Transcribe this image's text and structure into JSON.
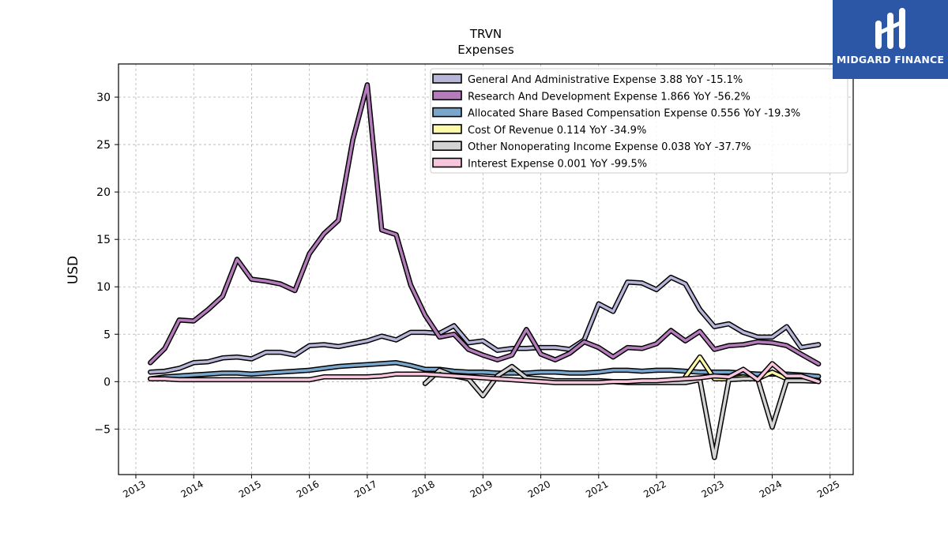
{
  "branding": {
    "logo_text": "MIDGARD FINANCE"
  },
  "chart_data": {
    "type": "line",
    "title": "TRVN",
    "subtitle": "Expenses",
    "xlabel": "",
    "ylabel": "USD",
    "xlim": [
      2012.7,
      2025.4
    ],
    "ylim": [
      -9.8,
      33.5
    ],
    "x_ticks": [
      2013,
      2014,
      2015,
      2016,
      2017,
      2018,
      2019,
      2020,
      2021,
      2022,
      2023,
      2024,
      2025
    ],
    "x_tick_labels": [
      "2013",
      "2014",
      "2015",
      "2016",
      "2017",
      "2018",
      "2019",
      "2020",
      "2021",
      "2022",
      "2023",
      "2024",
      "2025"
    ],
    "y_ticks": [
      -5,
      0,
      5,
      10,
      15,
      20,
      25,
      30
    ],
    "y_tick_labels": [
      "−5",
      "0",
      "5",
      "10",
      "15",
      "20",
      "25",
      "30"
    ],
    "grid": true,
    "legend_position": "top-right",
    "series": [
      {
        "name": "General And Administrative Expense",
        "legend_label": "General And Administrative Expense  3.88 YoY -15.1%",
        "color": "#b7b5d8",
        "points": [
          [
            2013.25,
            1.0
          ],
          [
            2013.5,
            1.1
          ],
          [
            2013.75,
            1.4
          ],
          [
            2014.0,
            2.0
          ],
          [
            2014.25,
            2.1
          ],
          [
            2014.5,
            2.5
          ],
          [
            2014.75,
            2.6
          ],
          [
            2015.0,
            2.4
          ],
          [
            2015.25,
            3.1
          ],
          [
            2015.5,
            3.1
          ],
          [
            2015.75,
            2.8
          ],
          [
            2016.0,
            3.8
          ],
          [
            2016.25,
            3.9
          ],
          [
            2016.5,
            3.7
          ],
          [
            2016.75,
            4.0
          ],
          [
            2017.0,
            4.3
          ],
          [
            2017.25,
            4.8
          ],
          [
            2017.5,
            4.4
          ],
          [
            2017.75,
            5.2
          ],
          [
            2018.0,
            5.2
          ],
          [
            2018.25,
            5.1
          ],
          [
            2018.5,
            5.9
          ],
          [
            2018.75,
            4.1
          ],
          [
            2019.0,
            4.3
          ],
          [
            2019.25,
            3.3
          ],
          [
            2019.5,
            3.5
          ],
          [
            2019.75,
            3.5
          ],
          [
            2020.0,
            3.6
          ],
          [
            2020.25,
            3.6
          ],
          [
            2020.5,
            3.4
          ],
          [
            2020.75,
            4.4
          ],
          [
            2021.0,
            8.2
          ],
          [
            2021.25,
            7.4
          ],
          [
            2021.5,
            10.5
          ],
          [
            2021.75,
            10.4
          ],
          [
            2022.0,
            9.7
          ],
          [
            2022.25,
            11.0
          ],
          [
            2022.5,
            10.3
          ],
          [
            2022.75,
            7.6
          ],
          [
            2023.0,
            5.8
          ],
          [
            2023.25,
            6.1
          ],
          [
            2023.5,
            5.2
          ],
          [
            2023.75,
            4.7
          ],
          [
            2024.0,
            4.7
          ],
          [
            2024.25,
            5.8
          ],
          [
            2024.5,
            3.6
          ],
          [
            2024.8,
            3.9
          ]
        ]
      },
      {
        "name": "Research And Development Expense",
        "legend_label": "Research And Development Expense  1.866 YoY -56.2%",
        "color": "#b57cbc",
        "points": [
          [
            2013.25,
            2.0
          ],
          [
            2013.5,
            3.5
          ],
          [
            2013.75,
            6.5
          ],
          [
            2014.0,
            6.4
          ],
          [
            2014.25,
            7.6
          ],
          [
            2014.5,
            9.0
          ],
          [
            2014.75,
            12.9
          ],
          [
            2015.0,
            10.8
          ],
          [
            2015.25,
            10.6
          ],
          [
            2015.5,
            10.3
          ],
          [
            2015.75,
            9.6
          ],
          [
            2016.0,
            13.5
          ],
          [
            2016.25,
            15.6
          ],
          [
            2016.5,
            17.0
          ],
          [
            2016.75,
            25.5
          ],
          [
            2017.0,
            31.3
          ],
          [
            2017.25,
            16.0
          ],
          [
            2017.5,
            15.5
          ],
          [
            2017.75,
            10.2
          ],
          [
            2018.0,
            7.0
          ],
          [
            2018.25,
            4.7
          ],
          [
            2018.5,
            5.0
          ],
          [
            2018.75,
            3.4
          ],
          [
            2019.0,
            2.8
          ],
          [
            2019.25,
            2.3
          ],
          [
            2019.5,
            2.8
          ],
          [
            2019.75,
            5.5
          ],
          [
            2020.0,
            2.9
          ],
          [
            2020.25,
            2.3
          ],
          [
            2020.5,
            3.0
          ],
          [
            2020.75,
            4.2
          ],
          [
            2021.0,
            3.6
          ],
          [
            2021.25,
            2.6
          ],
          [
            2021.5,
            3.6
          ],
          [
            2021.75,
            3.5
          ],
          [
            2022.0,
            4.0
          ],
          [
            2022.25,
            5.4
          ],
          [
            2022.5,
            4.3
          ],
          [
            2022.75,
            5.3
          ],
          [
            2023.0,
            3.4
          ],
          [
            2023.25,
            3.8
          ],
          [
            2023.5,
            3.9
          ],
          [
            2023.75,
            4.2
          ],
          [
            2024.0,
            4.1
          ],
          [
            2024.25,
            3.8
          ],
          [
            2024.5,
            2.9
          ],
          [
            2024.8,
            1.866
          ]
        ]
      },
      {
        "name": "Allocated Share Based Compensation Expense",
        "legend_label": "Allocated Share Based Compensation Expense  0.556 YoY -19.3%",
        "color": "#7aa6cc",
        "points": [
          [
            2013.25,
            0.3
          ],
          [
            2013.5,
            0.5
          ],
          [
            2013.75,
            0.6
          ],
          [
            2014.0,
            0.7
          ],
          [
            2014.25,
            0.8
          ],
          [
            2014.5,
            0.9
          ],
          [
            2014.75,
            0.9
          ],
          [
            2015.0,
            0.8
          ],
          [
            2015.25,
            0.9
          ],
          [
            2015.5,
            1.0
          ],
          [
            2015.75,
            1.1
          ],
          [
            2016.0,
            1.2
          ],
          [
            2016.25,
            1.4
          ],
          [
            2016.5,
            1.6
          ],
          [
            2016.75,
            1.7
          ],
          [
            2017.0,
            1.8
          ],
          [
            2017.25,
            1.9
          ],
          [
            2017.5,
            2.0
          ],
          [
            2017.75,
            1.7
          ],
          [
            2018.0,
            1.3
          ],
          [
            2018.25,
            1.3
          ],
          [
            2018.5,
            1.1
          ],
          [
            2018.75,
            1.0
          ],
          [
            2019.0,
            1.0
          ],
          [
            2019.25,
            0.9
          ],
          [
            2019.5,
            0.9
          ],
          [
            2019.75,
            0.9
          ],
          [
            2020.0,
            1.0
          ],
          [
            2020.25,
            1.0
          ],
          [
            2020.5,
            0.9
          ],
          [
            2020.75,
            0.9
          ],
          [
            2021.0,
            1.0
          ],
          [
            2021.25,
            1.2
          ],
          [
            2021.5,
            1.2
          ],
          [
            2021.75,
            1.1
          ],
          [
            2022.0,
            1.2
          ],
          [
            2022.25,
            1.2
          ],
          [
            2022.5,
            1.1
          ],
          [
            2022.75,
            1.0
          ],
          [
            2023.0,
            1.0
          ],
          [
            2023.25,
            1.0
          ],
          [
            2023.5,
            0.9
          ],
          [
            2023.75,
            0.8
          ],
          [
            2024.0,
            0.8
          ],
          [
            2024.25,
            0.8
          ],
          [
            2024.5,
            0.7
          ],
          [
            2024.8,
            0.556
          ]
        ]
      },
      {
        "name": "Cost Of Revenue",
        "legend_label": "Cost Of Revenue  0.114 YoY -34.9%",
        "color": "#fdfbaa",
        "points": [
          [
            2022.5,
            0.5
          ],
          [
            2022.75,
            2.6
          ],
          [
            2023.0,
            0.3
          ],
          [
            2023.25,
            0.3
          ],
          [
            2023.5,
            0.5
          ],
          [
            2023.75,
            0.3
          ],
          [
            2024.0,
            1.0
          ],
          [
            2024.25,
            0.3
          ],
          [
            2024.5,
            0.2
          ],
          [
            2024.8,
            0.114
          ]
        ]
      },
      {
        "name": "Other Nonoperating Income Expense",
        "legend_label": "Other Nonoperating Income Expense  0.038 YoY -37.7%",
        "color": "#d3d3d3",
        "points": [
          [
            2018.0,
            -0.2
          ],
          [
            2018.25,
            1.2
          ],
          [
            2018.5,
            0.6
          ],
          [
            2018.75,
            0.3
          ],
          [
            2019.0,
            -1.5
          ],
          [
            2019.25,
            0.6
          ],
          [
            2019.5,
            1.6
          ],
          [
            2019.75,
            0.4
          ],
          [
            2020.0,
            0.3
          ],
          [
            2020.25,
            0.1
          ],
          [
            2020.5,
            0.1
          ],
          [
            2020.75,
            0.1
          ],
          [
            2021.0,
            0.1
          ],
          [
            2021.25,
            0.0
          ],
          [
            2021.5,
            -0.1
          ],
          [
            2021.75,
            -0.1
          ],
          [
            2022.0,
            -0.1
          ],
          [
            2022.25,
            -0.1
          ],
          [
            2022.5,
            -0.1
          ],
          [
            2022.75,
            0.2
          ],
          [
            2023.0,
            -8.0
          ],
          [
            2023.25,
            0.2
          ],
          [
            2023.5,
            0.3
          ],
          [
            2023.75,
            0.3
          ],
          [
            2024.0,
            -4.8
          ],
          [
            2024.25,
            0.1
          ],
          [
            2024.5,
            0.1
          ],
          [
            2024.8,
            0.038
          ]
        ]
      },
      {
        "name": "Interest Expense",
        "legend_label": "Interest Expense  0.001 YoY -99.5%",
        "color": "#f7c6dd",
        "points": [
          [
            2013.25,
            0.3
          ],
          [
            2013.5,
            0.3
          ],
          [
            2013.75,
            0.2
          ],
          [
            2014.0,
            0.2
          ],
          [
            2014.25,
            0.2
          ],
          [
            2014.5,
            0.2
          ],
          [
            2014.75,
            0.2
          ],
          [
            2015.0,
            0.2
          ],
          [
            2015.25,
            0.2
          ],
          [
            2015.5,
            0.2
          ],
          [
            2015.75,
            0.2
          ],
          [
            2016.0,
            0.2
          ],
          [
            2016.25,
            0.5
          ],
          [
            2016.5,
            0.5
          ],
          [
            2016.75,
            0.5
          ],
          [
            2017.0,
            0.5
          ],
          [
            2017.25,
            0.6
          ],
          [
            2017.5,
            0.8
          ],
          [
            2017.75,
            0.8
          ],
          [
            2018.0,
            0.8
          ],
          [
            2018.25,
            0.7
          ],
          [
            2018.5,
            0.6
          ],
          [
            2018.75,
            0.5
          ],
          [
            2019.0,
            0.4
          ],
          [
            2019.25,
            0.3
          ],
          [
            2019.5,
            0.2
          ],
          [
            2019.75,
            0.1
          ],
          [
            2020.0,
            0.0
          ],
          [
            2020.25,
            -0.1
          ],
          [
            2020.5,
            -0.1
          ],
          [
            2020.75,
            -0.1
          ],
          [
            2021.0,
            -0.1
          ],
          [
            2021.25,
            0.0
          ],
          [
            2021.5,
            0.0
          ],
          [
            2021.75,
            0.1
          ],
          [
            2022.0,
            0.1
          ],
          [
            2022.25,
            0.2
          ],
          [
            2022.5,
            0.3
          ],
          [
            2022.75,
            0.4
          ],
          [
            2023.0,
            0.6
          ],
          [
            2023.25,
            0.5
          ],
          [
            2023.5,
            1.3
          ],
          [
            2023.75,
            0.2
          ],
          [
            2024.0,
            1.9
          ],
          [
            2024.25,
            0.6
          ],
          [
            2024.5,
            0.6
          ],
          [
            2024.8,
            0.001
          ]
        ]
      }
    ]
  }
}
